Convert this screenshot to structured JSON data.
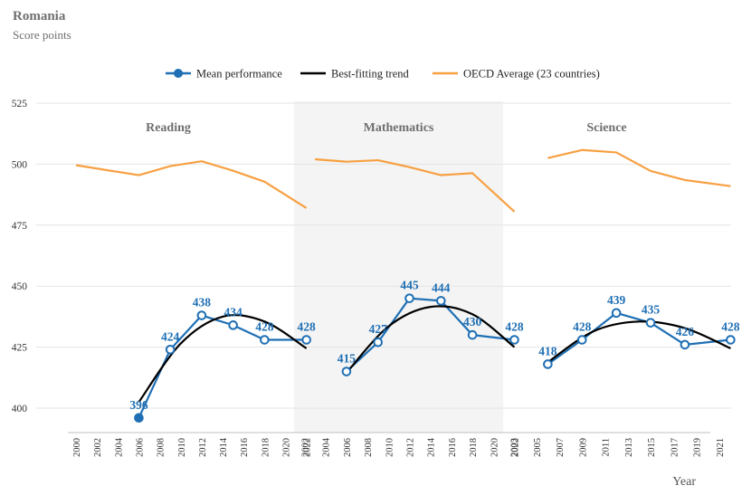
{
  "title": "Romania",
  "subtitle": "Score points",
  "colors": {
    "mean": "#1f6fb4",
    "trend": "#000000",
    "oecd": "#f7a042",
    "shade": "#f4f4f4",
    "grid": "#e3e3e3"
  },
  "legend": [
    {
      "key": "mean",
      "label": "Mean performance"
    },
    {
      "key": "trend",
      "label": "Best-fitting trend"
    },
    {
      "key": "oecd",
      "label": "OECD Average (23 countries)"
    }
  ],
  "chart_data": {
    "type": "line",
    "xlabel": "Year",
    "ylabel": "",
    "ylim": [
      390,
      525
    ],
    "yticks": [
      400,
      425,
      450,
      475,
      500,
      525
    ],
    "grid": true,
    "legend_position": "top",
    "panels": [
      {
        "name": "Reading",
        "xticks": [
          "2000",
          "2002",
          "2004",
          "2006",
          "2008",
          "2010",
          "2012",
          "2014",
          "2016",
          "2018",
          "2020",
          "2022"
        ],
        "mean": [
          {
            "year": 2006,
            "value": 396,
            "label": "396",
            "filled": true
          },
          {
            "year": 2009,
            "value": 424,
            "label": "424",
            "filled": false
          },
          {
            "year": 2012,
            "value": 438,
            "label": "438",
            "filled": false
          },
          {
            "year": 2015,
            "value": 434,
            "label": "434",
            "filled": false
          },
          {
            "year": 2018,
            "value": 428,
            "label": "428",
            "filled": false
          },
          {
            "year": 2022,
            "value": 428,
            "label": "428",
            "filled": false
          }
        ],
        "oecd": [
          {
            "year": 2000,
            "value": 499.6
          },
          {
            "year": 2003,
            "value": 497.5
          },
          {
            "year": 2006,
            "value": 495.5
          },
          {
            "year": 2009,
            "value": 499.2
          },
          {
            "year": 2012,
            "value": 501.2
          },
          {
            "year": 2015,
            "value": 497.3
          },
          {
            "year": 2018,
            "value": 492.8
          },
          {
            "year": 2022,
            "value": 482
          }
        ],
        "trend_range": [
          2006,
          2022
        ],
        "trend_points": [
          {
            "year": 2006,
            "value": 402.5
          },
          {
            "year": 2010,
            "value": 426.5
          },
          {
            "year": 2014,
            "value": 437.5
          },
          {
            "year": 2018,
            "value": 435.5
          },
          {
            "year": 2022,
            "value": 424.5
          }
        ]
      },
      {
        "name": "Mathematics",
        "xticks": [
          "2002",
          "2004",
          "2006",
          "2008",
          "2010",
          "2012",
          "2014",
          "2016",
          "2018",
          "2020",
          "2022"
        ],
        "mean": [
          {
            "year": 2006,
            "value": 415,
            "label": "415",
            "filled": false
          },
          {
            "year": 2009,
            "value": 427,
            "label": "427",
            "filled": false
          },
          {
            "year": 2012,
            "value": 445,
            "label": "445",
            "filled": false
          },
          {
            "year": 2015,
            "value": 444,
            "label": "444",
            "filled": false
          },
          {
            "year": 2018,
            "value": 430,
            "label": "430",
            "filled": false
          },
          {
            "year": 2022,
            "value": 428,
            "label": "428",
            "filled": false
          }
        ],
        "oecd": [
          {
            "year": 2003,
            "value": 502
          },
          {
            "year": 2006,
            "value": 501
          },
          {
            "year": 2009,
            "value": 501.6
          },
          {
            "year": 2012,
            "value": 498.8
          },
          {
            "year": 2015,
            "value": 495.5
          },
          {
            "year": 2018,
            "value": 496.3
          },
          {
            "year": 2022,
            "value": 480.5
          }
        ],
        "trend_range": [
          2006,
          2022
        ],
        "trend_points": [
          {
            "year": 2006,
            "value": 414.5
          },
          {
            "year": 2010,
            "value": 433.5
          },
          {
            "year": 2014,
            "value": 441.5
          },
          {
            "year": 2018,
            "value": 438.5
          },
          {
            "year": 2022,
            "value": 425
          }
        ]
      },
      {
        "name": "Science",
        "xticks": [
          "2003",
          "2005",
          "2007",
          "2009",
          "2011",
          "2013",
          "2015",
          "2017",
          "2019",
          "2021"
        ],
        "mean": [
          {
            "year": 2006,
            "value": 418,
            "label": "418",
            "filled": false
          },
          {
            "year": 2009,
            "value": 428,
            "label": "428",
            "filled": false
          },
          {
            "year": 2012,
            "value": 439,
            "label": "439",
            "filled": false
          },
          {
            "year": 2015,
            "value": 435,
            "label": "435",
            "filled": false
          },
          {
            "year": 2018,
            "value": 426,
            "label": "426",
            "filled": false
          },
          {
            "year": 2022,
            "value": 428,
            "label": "428",
            "filled": false
          }
        ],
        "oecd": [
          {
            "year": 2006,
            "value": 502.5
          },
          {
            "year": 2009,
            "value": 505.8
          },
          {
            "year": 2012,
            "value": 504.8
          },
          {
            "year": 2015,
            "value": 497.2
          },
          {
            "year": 2018,
            "value": 493.5
          },
          {
            "year": 2022,
            "value": 491
          }
        ],
        "trend_range": [
          2006,
          2022
        ],
        "trend_points": [
          {
            "year": 2006,
            "value": 418.8
          },
          {
            "year": 2010,
            "value": 431.5
          },
          {
            "year": 2014,
            "value": 435.5
          },
          {
            "year": 2018,
            "value": 432.8
          },
          {
            "year": 2022,
            "value": 424.5
          }
        ]
      }
    ]
  }
}
